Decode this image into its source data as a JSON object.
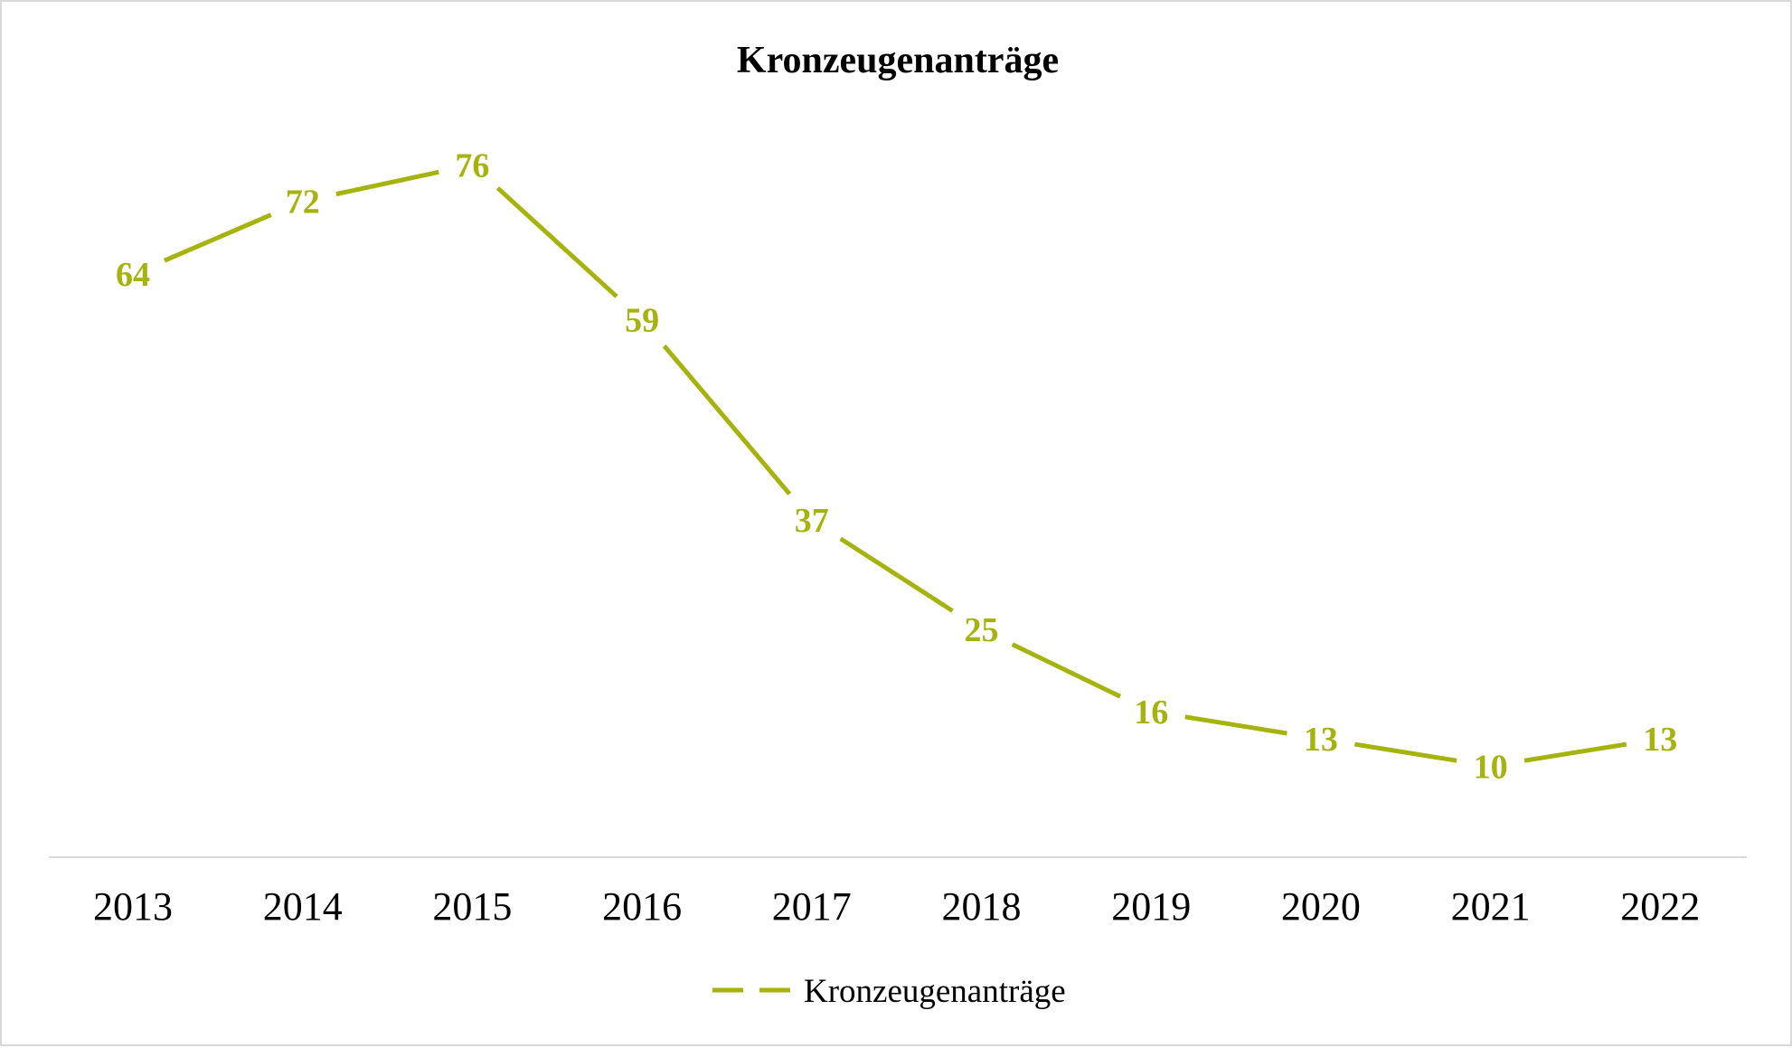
{
  "chart_data": {
    "type": "line",
    "title": "Kronzeugenanträge",
    "xlabel": "",
    "ylabel": "",
    "categories": [
      "2013",
      "2014",
      "2015",
      "2016",
      "2017",
      "2018",
      "2019",
      "2020",
      "2021",
      "2022"
    ],
    "series": [
      {
        "name": "Kronzeugenanträge",
        "values": [
          64,
          72,
          76,
          59,
          37,
          25,
          16,
          13,
          10,
          13
        ],
        "color": "#a6b30d"
      }
    ],
    "ylim": [
      0,
      80
    ],
    "grid": false,
    "data_labels": true,
    "legend": {
      "position": "bottom",
      "entries": [
        "Kronzeugenanträge"
      ]
    },
    "axis_color": "#d9d9d9"
  }
}
